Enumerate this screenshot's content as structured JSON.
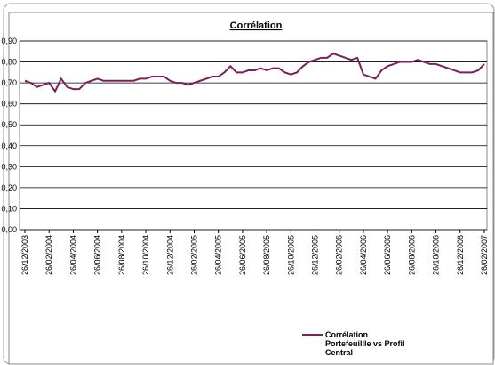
{
  "chart_data": {
    "type": "line",
    "title": "Corrélation",
    "categories": [
      "26/12/2003",
      null,
      null,
      null,
      "26/02/2004",
      null,
      null,
      null,
      "26/04/2004",
      null,
      null,
      null,
      "26/06/2004",
      null,
      null,
      null,
      "26/08/2004",
      null,
      null,
      null,
      "26/10/2004",
      null,
      null,
      null,
      "26/12/2004",
      null,
      null,
      null,
      "26/02/2005",
      null,
      null,
      null,
      "26/04/2005",
      null,
      null,
      null,
      "26/06/2005",
      null,
      null,
      null,
      "26/08/2005",
      null,
      null,
      null,
      "26/10/2005",
      null,
      null,
      null,
      "26/12/2005",
      null,
      null,
      null,
      "26/02/2006",
      null,
      null,
      null,
      "26/04/2006",
      null,
      null,
      null,
      "26/06/2006",
      null,
      null,
      null,
      "26/08/2006",
      null,
      null,
      null,
      "26/10/2006",
      null,
      null,
      null,
      "26/12/2006",
      null,
      null,
      null,
      "26/02/2007"
    ],
    "series": [
      {
        "name": "Corrélation Portefeuillle vs Profil Central",
        "color": "#7b1f5e",
        "values": [
          0.71,
          0.7,
          0.68,
          0.69,
          0.7,
          0.66,
          0.72,
          0.68,
          0.67,
          0.67,
          0.7,
          0.71,
          0.72,
          0.71,
          0.71,
          0.71,
          0.71,
          0.71,
          0.71,
          0.72,
          0.72,
          0.73,
          0.73,
          0.73,
          0.71,
          0.7,
          0.7,
          0.69,
          0.7,
          0.71,
          0.72,
          0.73,
          0.73,
          0.75,
          0.78,
          0.75,
          0.75,
          0.76,
          0.76,
          0.77,
          0.76,
          0.77,
          0.77,
          0.75,
          0.74,
          0.75,
          0.78,
          0.8,
          0.81,
          0.82,
          0.82,
          0.84,
          0.83,
          0.82,
          0.81,
          0.82,
          0.74,
          0.73,
          0.72,
          0.76,
          0.78,
          0.79,
          0.8,
          0.8,
          0.8,
          0.81,
          0.8,
          0.79,
          0.79,
          0.78,
          0.77,
          0.76,
          0.75,
          0.75,
          0.75,
          0.76,
          0.79
        ]
      }
    ],
    "ylim": [
      0,
      0.9
    ],
    "yticks": [
      {
        "value": 0,
        "label": "0,00"
      },
      {
        "value": 0.1,
        "label": "0,10"
      },
      {
        "value": 0.2,
        "label": "0,20"
      },
      {
        "value": 0.3,
        "label": "0,30"
      },
      {
        "value": 0.4,
        "label": "0,40"
      },
      {
        "value": 0.5,
        "label": "0,50"
      },
      {
        "value": 0.6,
        "label": "0,60"
      },
      {
        "value": 0.7,
        "label": "0,70"
      },
      {
        "value": 0.8,
        "label": "0,80"
      },
      {
        "value": 0.9,
        "label": "0,90"
      }
    ],
    "grid": true,
    "legend": "bottom"
  }
}
